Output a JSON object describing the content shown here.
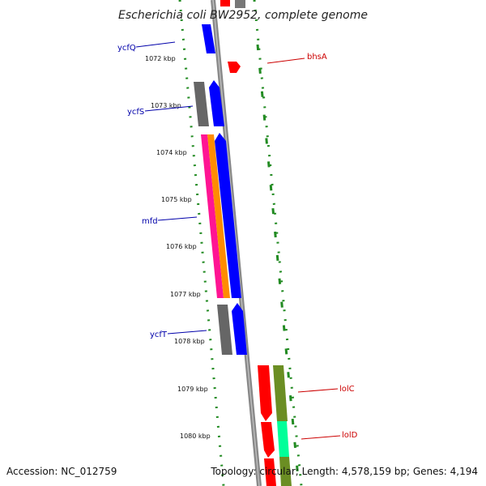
{
  "title": "Escherichia coli BW2952, complete genome",
  "footer": {
    "accession": "Accession: NC_012759",
    "topology": "Topology: circular; Length: 4,578,159 bp; Genes: 4,194"
  },
  "colors": {
    "backbone": "#888888",
    "dotted_track": "#228b22",
    "forward_cds": "#0000ff",
    "reverse_cds": "#ff0000",
    "gray_cds": "#666666",
    "pink_track": "#ff1493",
    "orange_track": "#ff8c00",
    "olive_track": "#6b8e23",
    "green_track": "#00ff99",
    "label_blue": "#0000aa",
    "label_red": "#cc0000"
  },
  "ticks": [
    {
      "label": "1072 kbp"
    },
    {
      "label": "1073 kbp"
    },
    {
      "label": "1074 kbp"
    },
    {
      "label": "1075 kbp"
    },
    {
      "label": "1076 kbp"
    },
    {
      "label": "1077 kbp"
    },
    {
      "label": "1078 kbp"
    },
    {
      "label": "1079 kbp"
    },
    {
      "label": "1080 kbp"
    }
  ],
  "genes": [
    {
      "name": "ycfQ",
      "strand": "left"
    },
    {
      "name": "bhsA",
      "strand": "right"
    },
    {
      "name": "ycfS",
      "strand": "left"
    },
    {
      "name": "mfd",
      "strand": "left"
    },
    {
      "name": "ycfT",
      "strand": "left"
    },
    {
      "name": "lolC",
      "strand": "right"
    },
    {
      "name": "lolD",
      "strand": "right"
    }
  ]
}
